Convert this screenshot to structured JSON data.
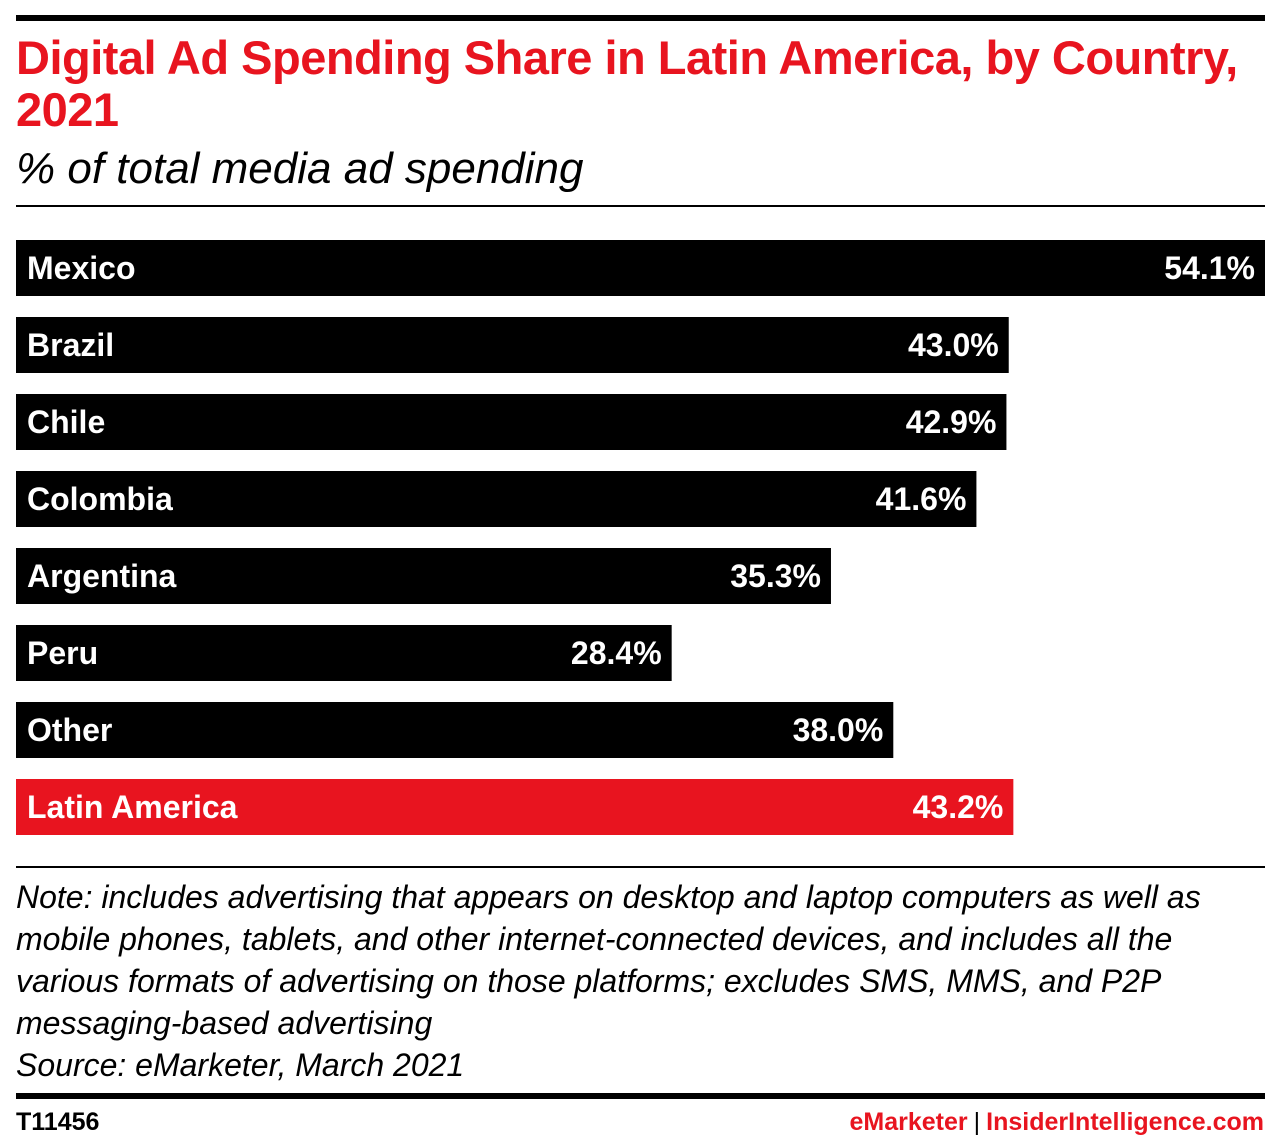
{
  "header": {
    "title": "Digital Ad Spending Share in Latin America, by Country, 2021",
    "subtitle": "% of total media ad spending"
  },
  "chart_data": {
    "type": "bar",
    "orientation": "horizontal",
    "categories": [
      "Mexico",
      "Brazil",
      "Chile",
      "Colombia",
      "Argentina",
      "Peru",
      "Other",
      "Latin America"
    ],
    "values": [
      54.1,
      43.0,
      42.9,
      41.6,
      35.3,
      28.4,
      38.0,
      43.2
    ],
    "value_labels": [
      "54.1%",
      "43.0%",
      "42.9%",
      "41.6%",
      "35.3%",
      "28.4%",
      "38.0%",
      "43.2%"
    ],
    "unit": "%",
    "xlim": [
      0,
      54.1
    ],
    "grid": false,
    "legend": "none",
    "colors": {
      "default": "#000000",
      "Latin America": "#e8141f"
    }
  },
  "footer": {
    "note": "Note: includes advertising that appears on desktop and laptop computers as well as mobile phones, tablets, and other internet-connected devices, and includes all the various formats of advertising on those platforms; excludes SMS, MMS, and P2P messaging-based advertising",
    "source": "Source: eMarketer, March 2021",
    "chart_id": "T11456",
    "brand_primary": "eMarketer",
    "brand_separator": "|",
    "brand_secondary": "InsiderIntelligence.com"
  },
  "colors": {
    "accent": "#e8141f",
    "text": "#000000"
  }
}
